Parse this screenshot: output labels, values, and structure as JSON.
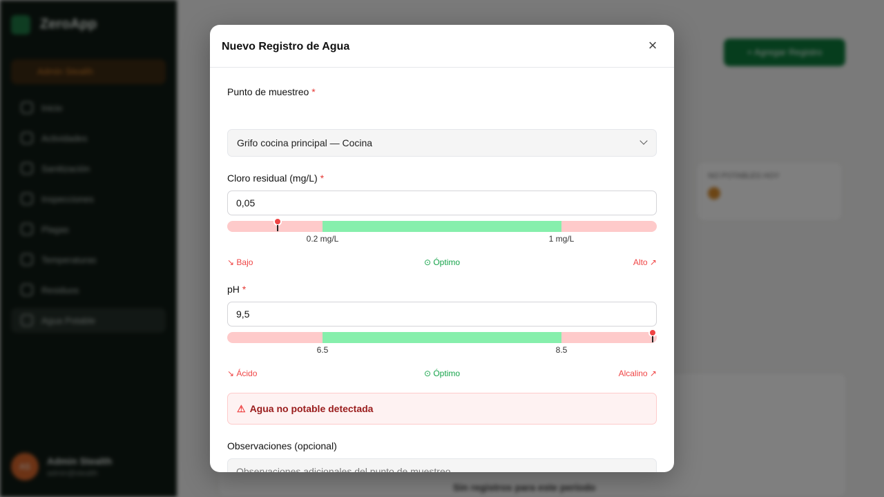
{
  "background": {
    "app_name": "ZeroApp",
    "role_badge": "Admin Stealth",
    "nav": [
      {
        "label": "Inicio"
      },
      {
        "label": "Actividades"
      },
      {
        "label": "Sanitización"
      },
      {
        "label": "Inspecciones"
      },
      {
        "label": "Plagas"
      },
      {
        "label": "Temperaturas"
      },
      {
        "label": "Residuos"
      },
      {
        "label": "Agua Potable"
      }
    ],
    "user": {
      "initials": "AS",
      "name": "Admin Stealth",
      "email": "admin@stealth"
    },
    "add_button": "+ Agregar Registro",
    "stat_card": "NO POTABLES HOY",
    "empty_text": "Sin registros para este período"
  },
  "modal": {
    "title": "Nuevo Registro de Agua",
    "close_icon": "close-icon",
    "sampling_point": {
      "label": "Punto de muestreo",
      "required": "*",
      "value": "Grifo cocina principal — Cocina"
    },
    "chlorine": {
      "label": "Cloro residual (mg/L)",
      "required": "*",
      "value": "0,05",
      "ticks": [
        "0.2 mg/L",
        "1 mg/L"
      ],
      "low": "↘ Bajo",
      "optimal": "⊙ Óptimo",
      "high": "Alto ↗",
      "marker_position_pct": 11.7,
      "optimal_range_pct": [
        22.2,
        77.8
      ]
    },
    "ph": {
      "label": "pH",
      "required": "*",
      "value": "9,5",
      "ticks": [
        "6.5",
        "8.5"
      ],
      "low": "↘ Ácido",
      "optimal": "⊙ Óptimo",
      "high": "Alcalino ↗",
      "marker_position_pct": 99,
      "optimal_range_pct": [
        22.2,
        77.8
      ]
    },
    "alert": {
      "icon": "warning-icon",
      "text": "Agua no potable detectada"
    },
    "observations": {
      "label": "Observaciones (opcional)",
      "placeholder": "Observaciones adicionales del punto de muestreo..."
    }
  },
  "colors": {
    "danger": "#ef4444",
    "success": "#16a34a",
    "range_bad": "#fecaca",
    "range_good": "#86efac"
  }
}
